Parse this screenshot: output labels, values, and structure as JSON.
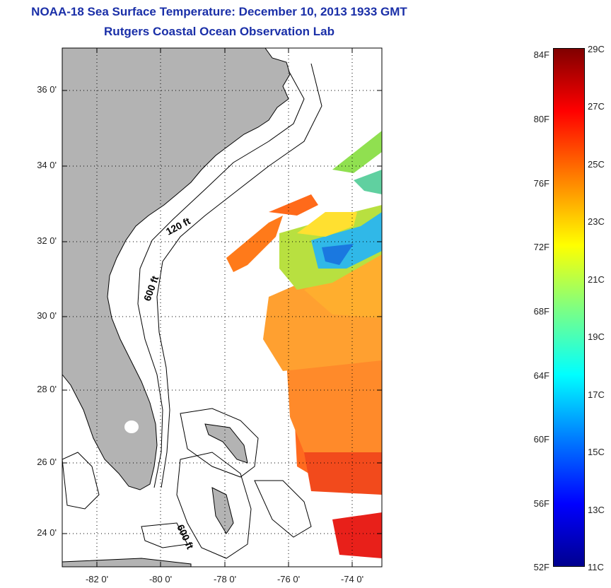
{
  "title_line1": "NOAA-18 Sea Surface Temperature:  December 10, 2013 1933 GMT",
  "title_line2": "Rutgers Coastal Ocean Observation Lab",
  "map": {
    "lat_labels": [
      "36 0'",
      "34 0'",
      "32 0'",
      "30 0'",
      "28 0'",
      "26 0'",
      "24 0'"
    ],
    "lon_labels": [
      "-82 0'",
      "-80 0'",
      "-78 0'",
      "-76 0'",
      "-74 0'"
    ],
    "contour_labels": [
      "120 ft",
      "600 ft",
      "600 ft"
    ],
    "colors": {
      "land": "#b3b3b3",
      "ocean": "#ffffff"
    }
  },
  "colorbar": {
    "fahrenheit_labels": [
      "84F",
      "80F",
      "76F",
      "72F",
      "68F",
      "64F",
      "60F",
      "56F",
      "52F"
    ],
    "celsius_labels": [
      "29C",
      "27C",
      "25C",
      "23C",
      "21C",
      "19C",
      "17C",
      "15C",
      "13C",
      "11C"
    ]
  }
}
